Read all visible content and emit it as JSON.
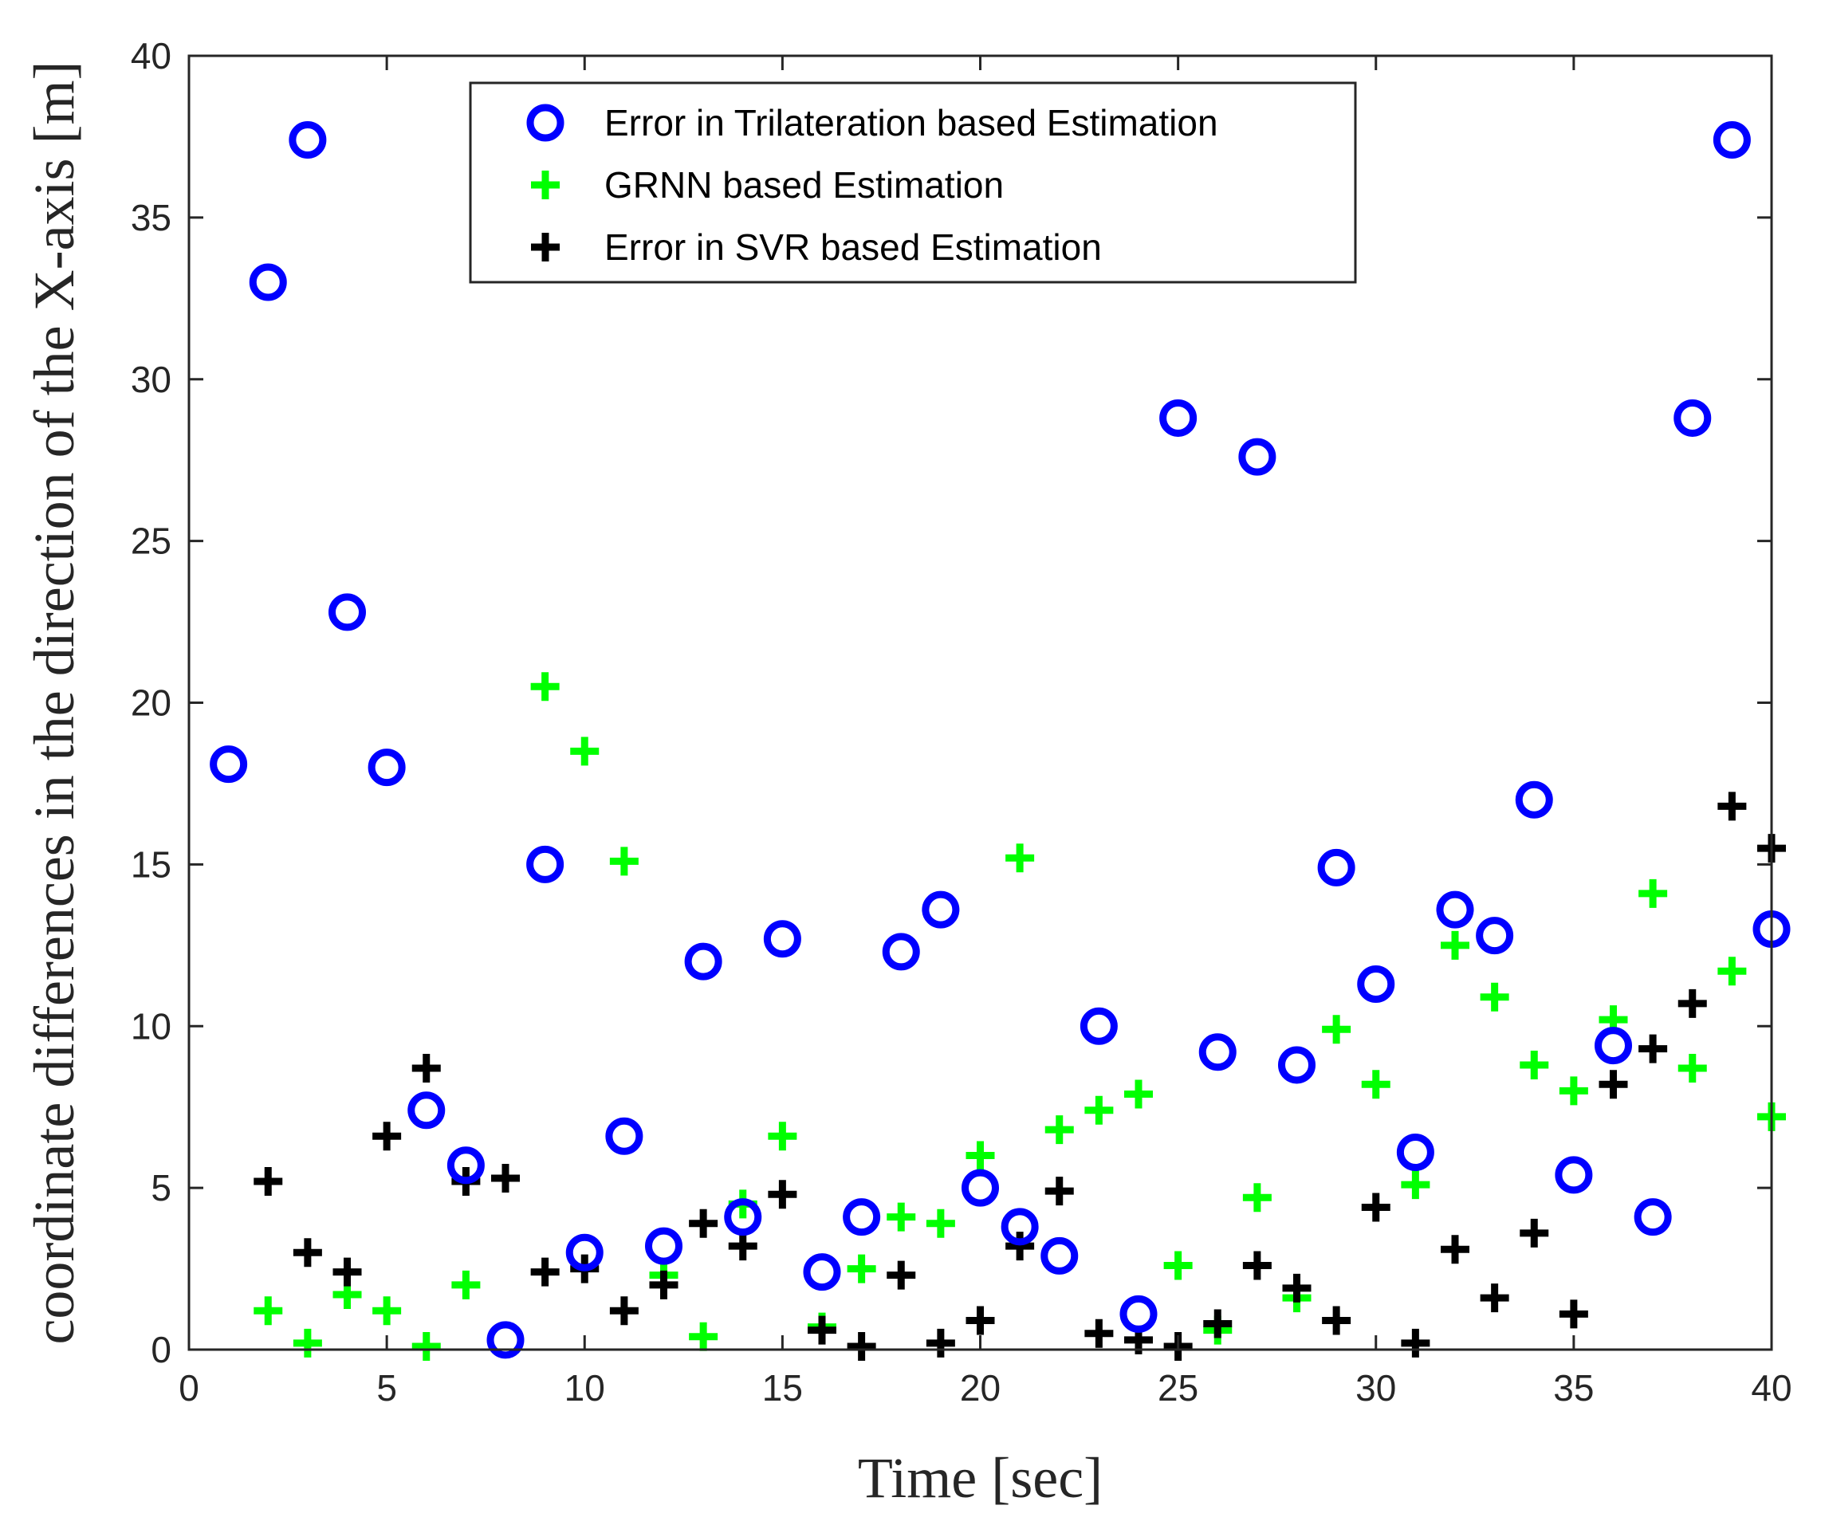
{
  "chart_data": {
    "type": "scatter",
    "title": "",
    "xlabel": "Time [sec]",
    "ylabel": "coordinate differences in the direction of the X-axis [m]",
    "xlim": [
      0,
      40
    ],
    "ylim": [
      0,
      40
    ],
    "xticks": [
      "0",
      "5",
      "10",
      "15",
      "20",
      "25",
      "30",
      "35",
      "40"
    ],
    "yticks": [
      "0",
      "5",
      "10",
      "15",
      "20",
      "25",
      "30",
      "35",
      "40"
    ],
    "grid": false,
    "legend_position": "top-center",
    "x": [
      1,
      2,
      3,
      4,
      5,
      6,
      7,
      8,
      9,
      10,
      11,
      12,
      13,
      14,
      15,
      16,
      17,
      18,
      19,
      20,
      21,
      22,
      23,
      24,
      25,
      26,
      27,
      28,
      29,
      30,
      31,
      32,
      33,
      34,
      35,
      36,
      37,
      38,
      39,
      40
    ],
    "series": [
      {
        "name": "Error in Trilateration based Estimation",
        "marker": "circle",
        "color": "#0000ff",
        "values": [
          18.1,
          33.0,
          37.4,
          22.8,
          18.0,
          7.4,
          5.7,
          0.3,
          15.0,
          3.0,
          6.6,
          3.2,
          12.0,
          4.1,
          12.7,
          2.4,
          4.1,
          12.3,
          13.6,
          5.0,
          3.8,
          2.9,
          10.0,
          1.1,
          28.8,
          9.2,
          27.6,
          8.8,
          14.9,
          11.3,
          6.1,
          13.6,
          12.8,
          17.0,
          5.4,
          9.4,
          4.1,
          28.8,
          37.4,
          13.0
        ]
      },
      {
        "name": "GRNN based Estimation",
        "marker": "plus",
        "color": "#00ff00",
        "values": [
          null,
          1.2,
          0.2,
          1.7,
          1.2,
          0.1,
          2.0,
          null,
          20.5,
          18.5,
          15.1,
          2.3,
          0.4,
          4.5,
          6.6,
          0.7,
          2.5,
          4.1,
          3.9,
          6.0,
          15.2,
          6.8,
          7.4,
          7.9,
          2.6,
          0.6,
          4.7,
          1.6,
          9.9,
          8.2,
          5.1,
          12.5,
          10.9,
          8.8,
          8.0,
          10.2,
          14.1,
          8.7,
          11.7,
          7.2
        ]
      },
      {
        "name": "Error in SVR based Estimation",
        "marker": "plus",
        "color": "#000000",
        "values": [
          null,
          5.2,
          3.0,
          2.4,
          6.6,
          8.7,
          5.2,
          5.3,
          2.4,
          2.5,
          1.2,
          2.0,
          3.9,
          3.2,
          4.8,
          0.6,
          0.1,
          2.3,
          0.2,
          0.9,
          3.2,
          4.9,
          0.5,
          0.3,
          0.1,
          0.8,
          2.6,
          1.9,
          0.9,
          4.4,
          0.2,
          3.1,
          1.6,
          3.6,
          1.1,
          8.2,
          9.3,
          10.7,
          16.8,
          15.5
        ]
      }
    ]
  }
}
